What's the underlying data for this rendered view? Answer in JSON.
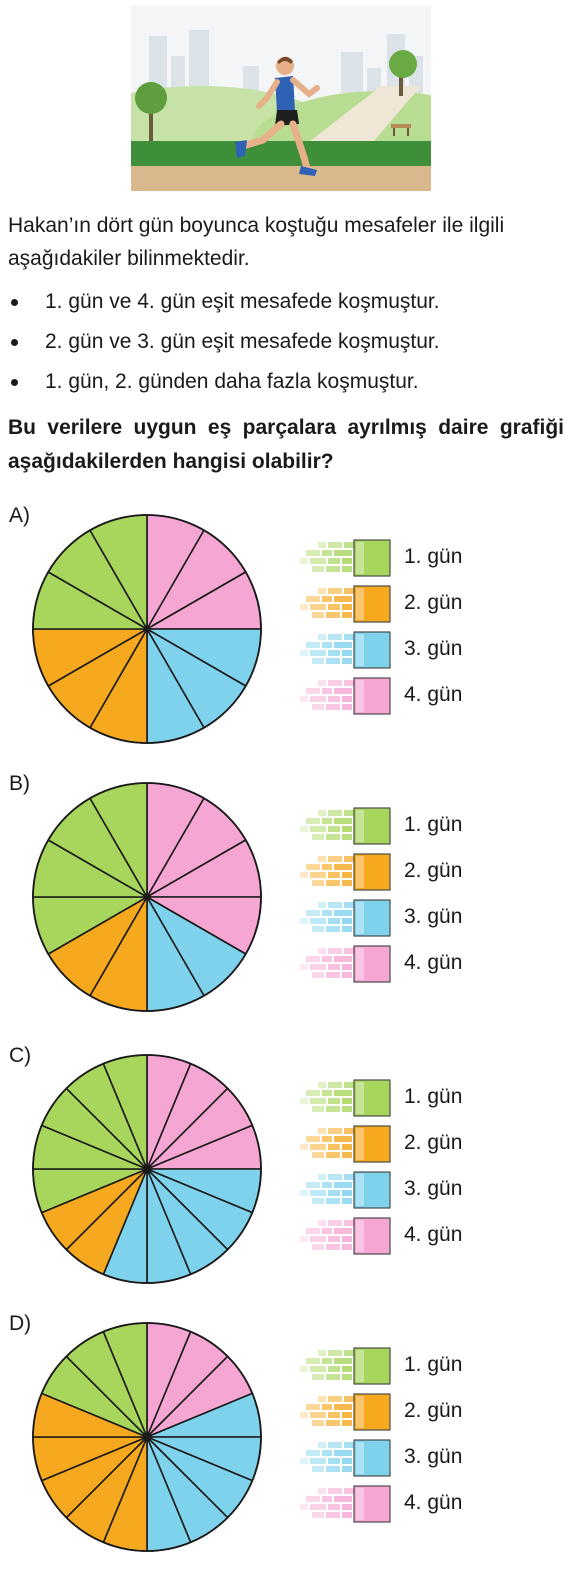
{
  "stem_text": "Hakan’ın dört gün boyunca koştuğu mesafeler ile ilgili aşağıdakiler bilinmektedir.",
  "bullets": [
    "1. gün ve 4. gün eşit mesafede koşmuştur.",
    "2. gün ve 3. gün eşit mesafede koşmuştur.",
    "1. gün, 2. günden daha fazla koşmuştur."
  ],
  "question": "Bu verilere uygun eş parçalara ayrılmış daire grafiği aşağıdakilerden hangisi olabilir?",
  "legend": [
    "1. gün",
    "2. gün",
    "3. gün",
    "4. gün"
  ],
  "colors": {
    "day1": "#a8d65c",
    "day2": "#f6a81f",
    "day3": "#7fd2ec",
    "day4": "#f5a6d3",
    "outline": "#1a1a1a"
  },
  "chart_data": [
    {
      "type": "pie",
      "label": "A)",
      "total_slices": 12,
      "categories": [
        "1. gün",
        "2. gün",
        "3. gün",
        "4. gün"
      ],
      "values": [
        3,
        3,
        3,
        3
      ],
      "order": [
        "4. gün",
        "3. gün",
        "2. gün",
        "1. gün"
      ]
    },
    {
      "type": "pie",
      "label": "B)",
      "total_slices": 12,
      "categories": [
        "1. gün",
        "2. gün",
        "3. gün",
        "4. gün"
      ],
      "values": [
        4,
        2,
        2,
        4
      ],
      "order": [
        "4. gün",
        "3. gün",
        "2. gün",
        "1. gün"
      ]
    },
    {
      "type": "pie",
      "label": "C)",
      "total_slices": 16,
      "categories": [
        "1. gün",
        "2. gün",
        "3. gün",
        "4. gün"
      ],
      "values": [
        5,
        2,
        5,
        4
      ],
      "order": [
        "4. gün",
        "3. gün",
        "2. gün",
        "1. gün"
      ]
    },
    {
      "type": "pie",
      "label": "D)",
      "total_slices": 16,
      "categories": [
        "1. gün",
        "2. gün",
        "3. gün",
        "4. gün"
      ],
      "values": [
        3,
        5,
        5,
        3
      ],
      "order": [
        "4. gün",
        "3. gün",
        "2. gün",
        "1. gün"
      ]
    }
  ]
}
